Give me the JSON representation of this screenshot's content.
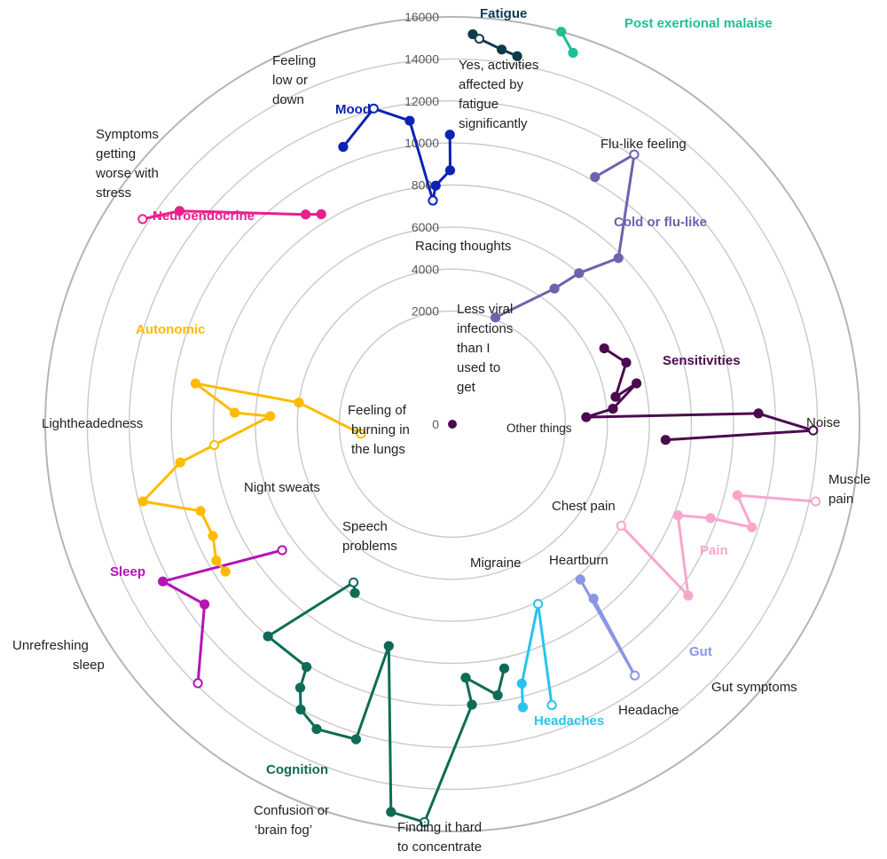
{
  "chart_data": {
    "type": "radial-line",
    "title": "",
    "scale": {
      "min": 0,
      "max": 16000,
      "step": 2000,
      "ticks": [
        "16000",
        "14000",
        "12000",
        "10000",
        "8000",
        "6000",
        "4000",
        "2000",
        "0"
      ]
    },
    "center_point": {
      "value": 0,
      "color": "#4b0a4f"
    },
    "groups": [
      {
        "name": "Fatigue",
        "color": "#0e3a4e",
        "points": [
          [
            3.0,
            15200
          ],
          [
            4.0,
            15000
          ],
          [
            7.5,
            14600
          ],
          [
            10.0,
            14400
          ]
        ],
        "open_index": 1
      },
      {
        "name": "Post exertional malaise",
        "color": "#1fbf96",
        "points": [
          [
            15.5,
            16000
          ],
          [
            18.0,
            15200
          ]
        ],
        "open_index": -1
      },
      {
        "name": "Cold or flu-like",
        "color": "#6b63ad",
        "points": [
          [
            30.0,
            10200
          ],
          [
            34.0,
            12100
          ],
          [
            45.0,
            7800
          ],
          [
            40.0,
            6000
          ],
          [
            37.0,
            4700
          ],
          [
            22.0,
            2100
          ]
        ],
        "open_index": 1
      },
      {
        "name": "Sensitivities",
        "color": "#4b0a4f",
        "points": [
          [
            63.5,
            4700
          ],
          [
            70.5,
            5400
          ],
          [
            80.5,
            4500
          ],
          [
            77.5,
            5600
          ],
          [
            84.5,
            4300
          ],
          [
            87.0,
            3000
          ],
          [
            88.0,
            11200
          ],
          [
            91.0,
            13800
          ],
          [
            94.2,
            6800
          ]
        ],
        "open_index": 7
      },
      {
        "name": "Pain",
        "color": "#f7a7cd",
        "points": [
          [
            102.0,
            14300
          ],
          [
            104.0,
            10600
          ],
          [
            109.0,
            11700
          ],
          [
            110.0,
            9700
          ],
          [
            112.0,
            8200
          ],
          [
            126.0,
            10500
          ],
          [
            121.0,
            6000
          ]
        ],
        "open_index": 0,
        "open_index_2": 6
      },
      {
        "name": "Gut",
        "color": "#8c95e6",
        "points": [
          [
            141.0,
            7300
          ],
          [
            144.0,
            11400
          ],
          [
            140.5,
            6200
          ]
        ],
        "open_index": 1
      },
      {
        "name": "Headaches",
        "color": "#29c3ef",
        "points": [
          [
            160.5,
            10800
          ],
          [
            154.5,
            6100
          ],
          [
            165.0,
            9400
          ],
          [
            166.0,
            10500
          ]
        ],
        "open_index": 1,
        "open_index_2": 0
      },
      {
        "name": "Cognition",
        "color": "#0e6b55",
        "points": [
          [
            168.0,
            8500
          ],
          [
            170.5,
            9700
          ],
          [
            177.0,
            8700
          ],
          [
            176.0,
            10000
          ],
          [
            184.0,
            15600
          ],
          [
            189.0,
            15300
          ],
          [
            196.0,
            7600
          ],
          [
            197.0,
            12300
          ],
          [
            204.0,
            12500
          ],
          [
            208.0,
            12000
          ],
          [
            210.0,
            11100
          ],
          [
            211.0,
            10100
          ],
          [
            221.0,
            10000
          ],
          [
            212.0,
            5500
          ],
          [
            210.0,
            5900
          ]
        ],
        "open_index": 13,
        "open_index_2": 4
      },
      {
        "name": "Sleep",
        "color": "#b514b5",
        "points": [
          [
            233.5,
            6700
          ],
          [
            241.5,
            12300
          ],
          [
            234.0,
            11200
          ],
          [
            224.5,
            13900
          ]
        ],
        "open_index": 0,
        "open_index_2": 3
      },
      {
        "name": "Autonomic",
        "color": "#ffbb00",
        "points": [
          [
            264.0,
            1000
          ],
          [
            278.0,
            4000
          ],
          [
            279.0,
            9000
          ],
          [
            273.0,
            7000
          ],
          [
            272.5,
            5300
          ],
          [
            265.0,
            8000
          ],
          [
            262.0,
            9700
          ],
          [
            256.0,
            11800
          ],
          [
            251.0,
            9300
          ],
          [
            245.0,
            9200
          ],
          [
            240.0,
            9600
          ],
          [
            237.0,
            9500
          ]
        ],
        "open_index": 0,
        "open_index_2": 5
      },
      {
        "name": "Neuroendocrine",
        "color": "#ea1f8e",
        "points": [
          [
            303.5,
            14300
          ],
          [
            308.0,
            13100
          ],
          [
            325.0,
            8800
          ],
          [
            328.0,
            8400
          ]
        ],
        "open_index": 0
      },
      {
        "name": "Mood",
        "color": "#0c23b5",
        "points": [
          [
            338.5,
            10800
          ],
          [
            346.0,
            12100
          ],
          [
            352.0,
            11200
          ],
          [
            355.0,
            7300
          ],
          [
            356.0,
            8000
          ],
          [
            359.5,
            8700
          ],
          [
            359.5,
            10400
          ]
        ],
        "open_index": 1,
        "open_index_2": 3
      }
    ],
    "annotations": [
      {
        "text": [
          "Yes, activities",
          "affected by",
          "fatigue",
          "significantly"
        ]
      },
      {
        "text": [
          "Feeling",
          "low or",
          "down"
        ]
      },
      {
        "text": [
          "Symptoms",
          "getting",
          "worse with",
          "stress"
        ]
      },
      {
        "text": [
          "Racing thoughts"
        ]
      },
      {
        "text": [
          "Flu-like feeling"
        ]
      },
      {
        "text": [
          "Less viral",
          "infections",
          "than I",
          "used to",
          "get"
        ]
      },
      {
        "text": [
          "Feeling of",
          "burning in",
          "the lungs"
        ]
      },
      {
        "text": [
          "Other things"
        ]
      },
      {
        "text": [
          "Noise"
        ]
      },
      {
        "text": [
          "Lightheadedness"
        ]
      },
      {
        "text": [
          "Muscle",
          "pain"
        ]
      },
      {
        "text": [
          "Chest pain"
        ]
      },
      {
        "text": [
          "Night sweats"
        ]
      },
      {
        "text": [
          "Speech",
          "problems"
        ]
      },
      {
        "text": [
          "Migraine"
        ]
      },
      {
        "text": [
          "Heartburn"
        ]
      },
      {
        "text": [
          "Unrefreshing",
          "sleep"
        ]
      },
      {
        "text": [
          "Headache"
        ]
      },
      {
        "text": [
          "Gut symptoms"
        ]
      },
      {
        "text": [
          "Confusion or",
          "‘brain fog’"
        ]
      },
      {
        "text": [
          "Finding it hard",
          "to concentrate"
        ]
      }
    ]
  }
}
